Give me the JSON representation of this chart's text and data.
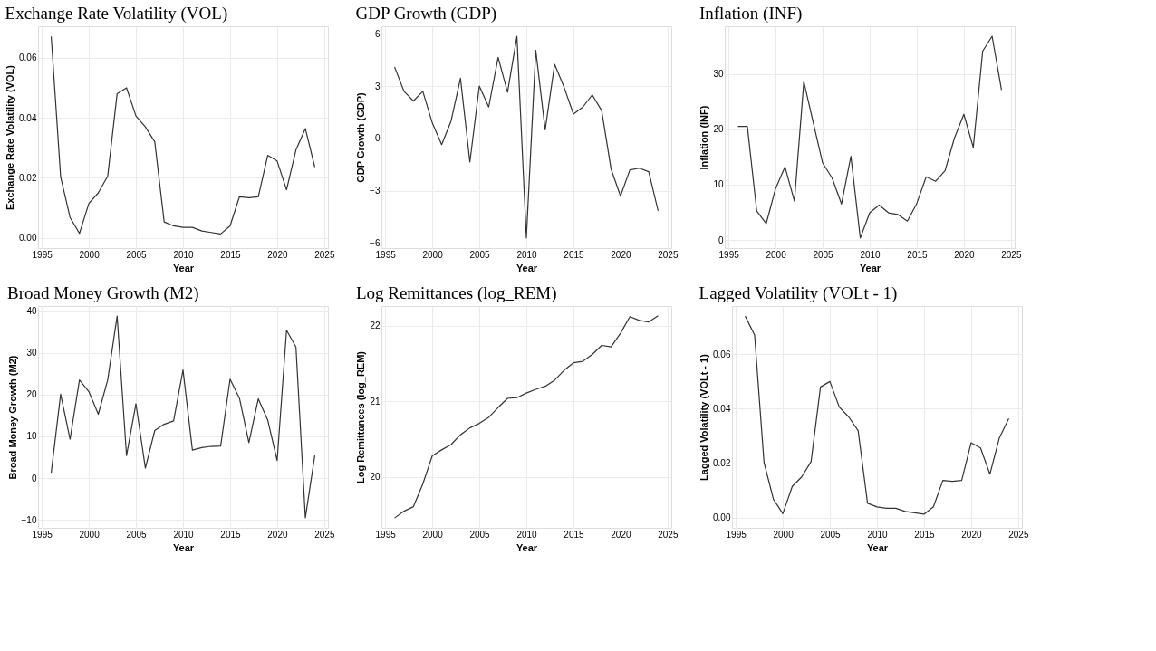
{
  "chart_data": [
    {
      "type": "line",
      "title": "Exchange Rate Volatility (VOL)",
      "xlabel": "Year",
      "ylabel": "Exchange Rate Volatility (VOL)",
      "grid": true,
      "line_style": "solid",
      "xlim": [
        1994.6,
        2025.4
      ],
      "xticks": [
        1995,
        2000,
        2005,
        2010,
        2015,
        2020,
        2025
      ],
      "ylim": [
        -0.0034,
        0.0705
      ],
      "yticks": [
        {
          "value": 0,
          "label": "0.00"
        },
        {
          "value": 0.02,
          "label": "0.02"
        },
        {
          "value": 0.04,
          "label": "0.04"
        },
        {
          "value": 0.06,
          "label": "0.06"
        }
      ],
      "x": [
        1996,
        1997,
        1998,
        1999,
        2000,
        2001,
        2002,
        2003,
        2004,
        2005,
        2006,
        2007,
        2008,
        2009,
        2010,
        2011,
        2012,
        2013,
        2014,
        2015,
        2016,
        2017,
        2018,
        2019,
        2020,
        2021,
        2022,
        2023,
        2024
      ],
      "series": [
        {
          "color": "#333333",
          "values": [
            0.0671,
            0.0203,
            0.0068,
            0.0015,
            0.0115,
            0.015,
            0.0206,
            0.048,
            0.05,
            0.0406,
            0.037,
            0.032,
            0.0053,
            0.004,
            0.0035,
            0.0035,
            0.0023,
            0.0018,
            0.0013,
            0.004,
            0.0137,
            0.0134,
            0.0137,
            0.0275,
            0.0256,
            0.016,
            0.0293,
            0.0364,
            0.0236
          ]
        }
      ]
    },
    {
      "type": "line",
      "title": "GDP Growth (GDP)",
      "xlabel": "Year",
      "ylabel": "GDP Growth (GDP)",
      "grid": true,
      "line_style": "solid",
      "xlim": [
        1994.6,
        2025.4
      ],
      "xticks": [
        1995,
        2000,
        2005,
        2010,
        2015,
        2020,
        2025
      ],
      "ylim": [
        -6.28,
        6.43
      ],
      "yticks": [
        -6,
        -3,
        0,
        3,
        6
      ],
      "x": [
        1996,
        1997,
        1998,
        1999,
        2000,
        2001,
        2002,
        2003,
        2004,
        2005,
        2006,
        2007,
        2008,
        2009,
        2010,
        2011,
        2012,
        2013,
        2014,
        2015,
        2016,
        2017,
        2018,
        2019,
        2020,
        2021,
        2022,
        2023,
        2024
      ],
      "series": [
        {
          "color": "#333333",
          "values": [
            4.1,
            2.7,
            2.15,
            2.7,
            0.9,
            -0.35,
            1.0,
            3.45,
            -1.35,
            3.0,
            1.8,
            4.65,
            2.65,
            5.85,
            -5.7,
            5.05,
            0.5,
            4.25,
            2.95,
            1.4,
            1.8,
            2.5,
            1.6,
            -1.75,
            -3.3,
            -1.8,
            -1.7,
            -1.9,
            -4.15
          ]
        }
      ]
    },
    {
      "type": "line",
      "title": "Inflation (INF)",
      "xlabel": "Year",
      "ylabel": "Inflation (INF)",
      "grid": true,
      "line_style": "solid",
      "xlim": [
        1994.6,
        2025.4
      ],
      "xticks": [
        1995,
        2000,
        2005,
        2010,
        2015,
        2020,
        2025
      ],
      "ylim": [
        -1.47,
        38.6
      ],
      "yticks": [
        0,
        10,
        20,
        30
      ],
      "x": [
        1996,
        1997,
        1998,
        1999,
        2000,
        2001,
        2002,
        2003,
        2004,
        2005,
        2006,
        2007,
        2008,
        2009,
        2010,
        2011,
        2012,
        2013,
        2014,
        2015,
        2016,
        2017,
        2018,
        2019,
        2020,
        2021,
        2022,
        2023,
        2024
      ],
      "series": [
        {
          "color": "#333333",
          "values": [
            20.5,
            20.5,
            5.2,
            2.95,
            9.3,
            13.2,
            7.0,
            28.6,
            21.2,
            13.9,
            11.2,
            6.5,
            15.1,
            0.35,
            4.9,
            6.3,
            4.9,
            4.6,
            3.4,
            6.6,
            11.4,
            10.6,
            12.5,
            18.4,
            22.7,
            16.7,
            34.1,
            36.8,
            27.1
          ]
        }
      ]
    },
    {
      "type": "line",
      "title": "Broad Money Growth (M2)",
      "xlabel": "Year",
      "ylabel": "Broad Money Growth (M2)",
      "grid": true,
      "line_style": "solid",
      "xlim": [
        1994.6,
        2025.4
      ],
      "xticks": [
        1995,
        2000,
        2005,
        2010,
        2015,
        2020,
        2025
      ],
      "ylim": [
        -11.9,
        41.2
      ],
      "yticks": [
        -10,
        0,
        10,
        20,
        30,
        40
      ],
      "x": [
        1996,
        1997,
        1998,
        1999,
        2000,
        2001,
        2002,
        2003,
        2004,
        2005,
        2006,
        2007,
        2008,
        2009,
        2010,
        2011,
        2012,
        2013,
        2014,
        2015,
        2016,
        2017,
        2018,
        2019,
        2020,
        2021,
        2022,
        2023,
        2024
      ],
      "series": [
        {
          "color": "#333333",
          "values": [
            1.3,
            20.1,
            9.3,
            23.5,
            20.7,
            15.3,
            23.5,
            38.8,
            5.4,
            17.8,
            2.4,
            11.4,
            12.9,
            13.7,
            25.9,
            6.7,
            7.3,
            7.6,
            7.7,
            23.7,
            19.1,
            8.5,
            19.0,
            13.9,
            4.2,
            35.4,
            31.4,
            -9.5,
            5.4
          ]
        }
      ]
    },
    {
      "type": "line",
      "title": "Log Remittances (log_REM)",
      "xlabel": "Year",
      "ylabel": "Log Remittances (log_REM)",
      "grid": true,
      "line_style": "solid",
      "xlim": [
        1994.6,
        2025.4
      ],
      "xticks": [
        1995,
        2000,
        2005,
        2010,
        2015,
        2020,
        2025
      ],
      "ylim": [
        19.33,
        22.26
      ],
      "yticks": [
        20,
        21,
        22
      ],
      "x": [
        1996,
        1997,
        1998,
        1999,
        2000,
        2001,
        2002,
        2003,
        2004,
        2005,
        2006,
        2007,
        2008,
        2009,
        2010,
        2011,
        2012,
        2013,
        2014,
        2015,
        2016,
        2017,
        2018,
        2019,
        2020,
        2021,
        2022,
        2023,
        2024
      ],
      "series": [
        {
          "color": "#333333",
          "values": [
            19.46,
            19.55,
            19.61,
            19.91,
            20.28,
            20.36,
            20.43,
            20.56,
            20.65,
            20.71,
            20.79,
            20.92,
            21.04,
            21.05,
            21.11,
            21.16,
            21.2,
            21.28,
            21.41,
            21.51,
            21.53,
            21.62,
            21.74,
            21.72,
            21.9,
            22.12,
            22.07,
            22.05,
            22.13
          ]
        }
      ]
    },
    {
      "type": "line",
      "title": "Lagged Volatility (VOLt - 1)",
      "xlabel": "Year",
      "ylabel": "Lagged Volatility (VOLt - 1)",
      "grid": true,
      "line_style": "solid",
      "xlim": [
        1994.6,
        2025.4
      ],
      "xticks": [
        1995,
        2000,
        2005,
        2010,
        2015,
        2020,
        2025
      ],
      "ylim": [
        -0.0037,
        0.0777
      ],
      "yticks": [
        {
          "value": 0,
          "label": "0.00"
        },
        {
          "value": 0.02,
          "label": "0.02"
        },
        {
          "value": 0.04,
          "label": "0.04"
        },
        {
          "value": 0.06,
          "label": "0.06"
        }
      ],
      "x": [
        1996,
        1997,
        1998,
        1999,
        2000,
        2001,
        2002,
        2003,
        2004,
        2005,
        2006,
        2007,
        2008,
        2009,
        2010,
        2011,
        2012,
        2013,
        2014,
        2015,
        2016,
        2017,
        2018,
        2019,
        2020,
        2021,
        2022,
        2023,
        2024
      ],
      "series": [
        {
          "color": "#333333",
          "values": [
            0.074,
            0.0671,
            0.0203,
            0.0068,
            0.0015,
            0.0115,
            0.015,
            0.0206,
            0.048,
            0.05,
            0.0406,
            0.037,
            0.032,
            0.0053,
            0.004,
            0.0035,
            0.0035,
            0.0023,
            0.0018,
            0.0013,
            0.004,
            0.0137,
            0.0134,
            0.0137,
            0.0275,
            0.0256,
            0.016,
            0.0293,
            0.0364
          ]
        }
      ]
    }
  ]
}
